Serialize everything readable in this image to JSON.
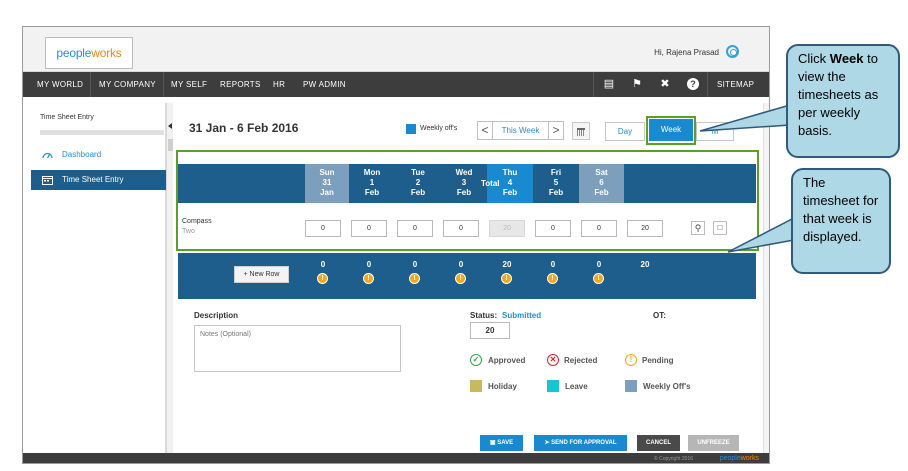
{
  "app": {
    "logo_left": "people",
    "logo_right": "works",
    "greeting": "Hi, Rajena Prasad"
  },
  "nav": {
    "items": [
      "MY WORLD",
      "MY COMPANY",
      "MY SELF",
      "REPORTS",
      "HR",
      "PW ADMIN"
    ],
    "sitemap": "SITEMAP",
    "icons": [
      "book-icon",
      "flag-icon",
      "tools-icon",
      "help-icon"
    ]
  },
  "sidebar": {
    "title": "Time Sheet Entry",
    "items": [
      {
        "label": "Dashboard",
        "icon": "dashboard-icon",
        "active": false
      },
      {
        "label": "Time Sheet Entry",
        "icon": "calendar-icon",
        "active": true
      }
    ]
  },
  "toolbar": {
    "date_range": "31 Jan - 6 Feb 2016",
    "legend_label": "Weekly off's",
    "this_week": "This Week",
    "prev": "<",
    "next": ">",
    "view_day": "Day",
    "view_week": "Week",
    "view_month": "M"
  },
  "timesheet": {
    "days": [
      {
        "name": "Sun",
        "date": "31",
        "month": "Jan",
        "type": "weekend"
      },
      {
        "name": "Mon",
        "date": "1",
        "month": "Feb",
        "type": "work"
      },
      {
        "name": "Tue",
        "date": "2",
        "month": "Feb",
        "type": "work"
      },
      {
        "name": "Wed",
        "date": "3",
        "month": "Feb",
        "type": "work"
      },
      {
        "name": "Thu",
        "date": "4",
        "month": "Feb",
        "type": "today"
      },
      {
        "name": "Fri",
        "date": "5",
        "month": "Feb",
        "type": "work"
      },
      {
        "name": "Sat",
        "date": "6",
        "month": "Feb",
        "type": "weekend"
      }
    ],
    "total_label": "Total",
    "row": {
      "project": "Compass",
      "task": "Two",
      "hours": [
        "0",
        "0",
        "0",
        "0",
        "20",
        "0",
        "0"
      ],
      "total": "20"
    },
    "footer_totals": [
      "0",
      "0",
      "0",
      "0",
      "20",
      "0",
      "0"
    ],
    "grand_total": "20",
    "new_row": "+ New Row"
  },
  "details": {
    "description_label": "Description",
    "description_placeholder": "Notes (Optional)",
    "status_label": "Status:",
    "status_value": "Submitted",
    "ot_label": "OT:",
    "status_total": "20",
    "legend": [
      {
        "label": "Approved",
        "color": "#2ea84a"
      },
      {
        "label": "Rejected",
        "color": "#d9262e"
      },
      {
        "label": "Pending",
        "color": "#f3a81c"
      },
      {
        "label": "Holiday",
        "color": "#c7b95d"
      },
      {
        "label": "Leave",
        "color": "#19c5d2"
      },
      {
        "label": "Weekly Off's",
        "color": "#7b9fbd"
      }
    ]
  },
  "actions": {
    "save": "SAVE",
    "send_approval": "SEND FOR APPROVAL",
    "cancel": "CANCEL",
    "unfreeze": "UNFREEZE"
  },
  "footer": {
    "copyright": "© Copyright 2016",
    "logo_left": "people",
    "logo_right": "works"
  },
  "callouts": {
    "week_pre": "Click ",
    "week_bold": "Week",
    "week_post": " to view the timesheets as per weekly basis.",
    "timesheet": "The timesheet for that week is displayed."
  },
  "colors": {
    "accent": "#1a8ad0",
    "header_dark": "#1e5e8c",
    "highlight": "#5a9f2c",
    "callout_bg": "#aed8e6"
  }
}
